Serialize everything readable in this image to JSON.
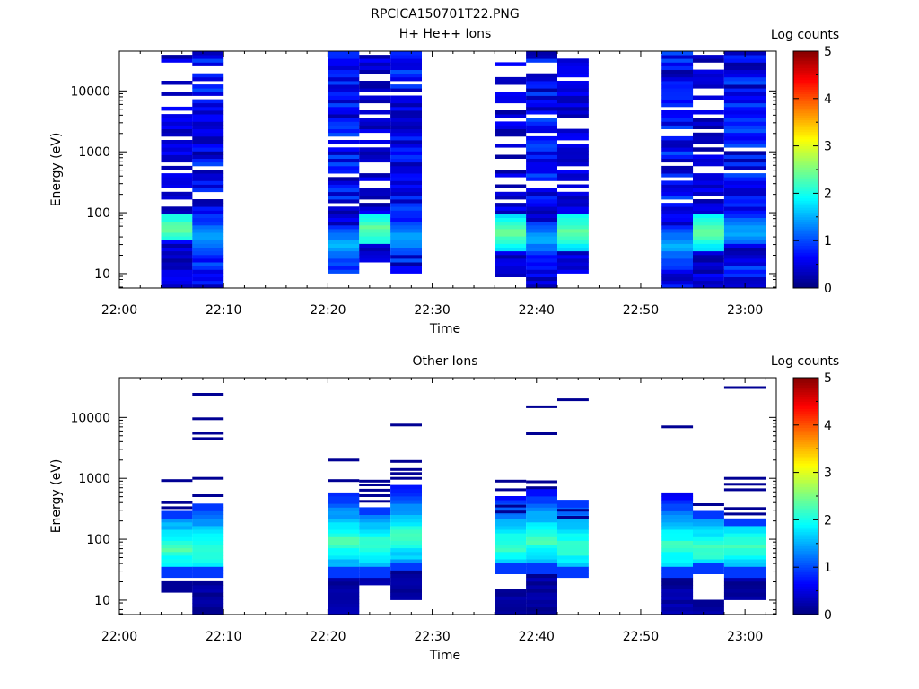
{
  "figure_title": "RPCICA150701T22.PNG",
  "chart_data": [
    {
      "type": "heatmap",
      "title": "H+ He++ Ions",
      "xlabel": "Time",
      "ylabel": "Energy (eV)",
      "x_ticks": [
        "22:00",
        "22:10",
        "22:20",
        "22:30",
        "22:40",
        "22:50",
        "23:00"
      ],
      "x_range": [
        "22:00",
        "23:03"
      ],
      "y_scale": "log",
      "y_ticks": [
        10,
        100,
        1000,
        10000
      ],
      "y_range": [
        5.8,
        45000
      ],
      "colorbar": {
        "label": "Log counts",
        "range": [
          0,
          5
        ],
        "ticks": [
          0,
          1,
          2,
          3,
          4,
          5
        ]
      },
      "columns": [
        {
          "start": "22:04",
          "end": "22:07",
          "emin": 5.8,
          "emax": 37000,
          "profile": "hot",
          "peak": [
            35,
            90
          ],
          "gaps": 0.45,
          "seed": 1
        },
        {
          "start": "22:07",
          "end": "22:10",
          "emin": 5.8,
          "emax": 42000,
          "profile": "mid",
          "peak": [
            20,
            80
          ],
          "gaps": 0.08,
          "seed": 2
        },
        {
          "start": "22:20",
          "end": "22:23",
          "emin": 9.5,
          "emax": 42000,
          "profile": "mid",
          "peak": [
            15,
            60
          ],
          "gaps": 0.08,
          "seed": 3
        },
        {
          "start": "22:23",
          "end": "22:26",
          "emin": 15,
          "emax": 38000,
          "profile": "hot",
          "peak": [
            30,
            100
          ],
          "gaps": 0.35,
          "seed": 4
        },
        {
          "start": "22:26",
          "end": "22:29",
          "emin": 9.5,
          "emax": 42000,
          "profile": "mid",
          "peak": [
            20,
            70
          ],
          "gaps": 0.08,
          "seed": 5
        },
        {
          "start": "22:36",
          "end": "22:39",
          "emin": 8.5,
          "emax": 37000,
          "profile": "hot",
          "peak": [
            25,
            90
          ],
          "gaps": 0.4,
          "seed": 6
        },
        {
          "start": "22:39",
          "end": "22:42",
          "emin": 5.8,
          "emax": 42000,
          "profile": "mid",
          "peak": [
            20,
            70
          ],
          "gaps": 0.1,
          "seed": 7
        },
        {
          "start": "22:42",
          "end": "22:45",
          "emin": 9.5,
          "emax": 36000,
          "profile": "hot",
          "peak": [
            25,
            100
          ],
          "gaps": 0.3,
          "seed": 8
        },
        {
          "start": "22:52",
          "end": "22:55",
          "emin": 5.8,
          "emax": 42000,
          "profile": "mid",
          "peak": [
            15,
            60
          ],
          "gaps": 0.08,
          "seed": 9
        },
        {
          "start": "22:55",
          "end": "22:58",
          "emin": 5.8,
          "emax": 40000,
          "profile": "hot",
          "peak": [
            25,
            100
          ],
          "gaps": 0.35,
          "seed": 10
        },
        {
          "start": "22:58",
          "end": "23:02",
          "emin": 5.8,
          "emax": 42000,
          "profile": "mid",
          "peak": [
            30,
            80
          ],
          "gaps": 0.08,
          "seed": 11
        }
      ]
    },
    {
      "type": "heatmap",
      "title": "Other Ions",
      "xlabel": "Time",
      "ylabel": "Energy (eV)",
      "x_ticks": [
        "22:00",
        "22:10",
        "22:20",
        "22:30",
        "22:40",
        "22:50",
        "23:00"
      ],
      "x_range": [
        "22:00",
        "23:03"
      ],
      "y_scale": "log",
      "y_ticks": [
        10,
        100,
        1000,
        10000
      ],
      "y_range": [
        5.8,
        45000
      ],
      "colorbar": {
        "label": "Log counts",
        "range": [
          0,
          5
        ],
        "ticks": [
          0,
          1,
          2,
          3,
          4,
          5
        ]
      },
      "columns": [
        {
          "start": "22:04",
          "end": "22:07",
          "core": [
            25,
            280
          ],
          "tail": [
            14,
            20
          ],
          "peak": [
            40,
            120
          ],
          "lines": [
            920,
            400,
            330
          ],
          "seed": 21
        },
        {
          "start": "22:07",
          "end": "22:10",
          "core": [
            25,
            380
          ],
          "tail": [
            5.8,
            20
          ],
          "peak": [
            40,
            120
          ],
          "lines": [
            24000,
            9500,
            5500,
            4500,
            1000,
            520
          ],
          "seed": 22
        },
        {
          "start": "22:20",
          "end": "22:23",
          "core": [
            24,
            550
          ],
          "tail": [
            5.8,
            22
          ],
          "peak": [
            60,
            150
          ],
          "lines": [
            2000,
            920
          ],
          "seed": 23
        },
        {
          "start": "22:23",
          "end": "22:26",
          "core": [
            25,
            320
          ],
          "tail": [
            17,
            25
          ],
          "peak": [
            40,
            150
          ],
          "lines": [
            900,
            780,
            640,
            520,
            420
          ],
          "seed": 24
        },
        {
          "start": "22:26",
          "end": "22:29",
          "core": [
            30,
            800
          ],
          "tail": [
            9.5,
            30
          ],
          "peak": [
            60,
            200
          ],
          "lines": [
            7500,
            1900,
            1400,
            1200,
            1000
          ],
          "seed": 25
        },
        {
          "start": "22:36",
          "end": "22:39",
          "core": [
            28,
            520
          ],
          "tail": [
            5.8,
            15
          ],
          "peak": [
            40,
            150
          ],
          "lines": [
            900,
            650,
            350,
            280
          ],
          "seed": 26
        },
        {
          "start": "22:39",
          "end": "22:42",
          "core": [
            28,
            680
          ],
          "tail": [
            5.8,
            28
          ],
          "peak": [
            50,
            180
          ],
          "lines": [
            15000,
            5400,
            880,
            700
          ],
          "seed": 27
        },
        {
          "start": "22:42",
          "end": "22:45",
          "core": [
            25,
            420
          ],
          "tail": [
            25,
            25
          ],
          "peak": [
            40,
            150
          ],
          "lines": [
            19500,
            300,
            230
          ],
          "seed": 28
        },
        {
          "start": "22:52",
          "end": "22:55",
          "core": [
            25,
            620
          ],
          "tail": [
            5.8,
            25
          ],
          "peak": [
            40,
            150
          ],
          "lines": [
            7000
          ],
          "seed": 29
        },
        {
          "start": "22:55",
          "end": "22:58",
          "core": [
            28,
            300
          ],
          "tail": [
            5.8,
            9.5
          ],
          "peak": [
            40,
            120
          ],
          "lines": [
            370
          ],
          "seed": 30
        },
        {
          "start": "22:58",
          "end": "23:02",
          "core": [
            25,
            230
          ],
          "tail": [
            9.5,
            25
          ],
          "peak": [
            40,
            150
          ],
          "lines": [
            31000,
            1000,
            800,
            650,
            320,
            260
          ],
          "seed": 31
        }
      ]
    }
  ]
}
